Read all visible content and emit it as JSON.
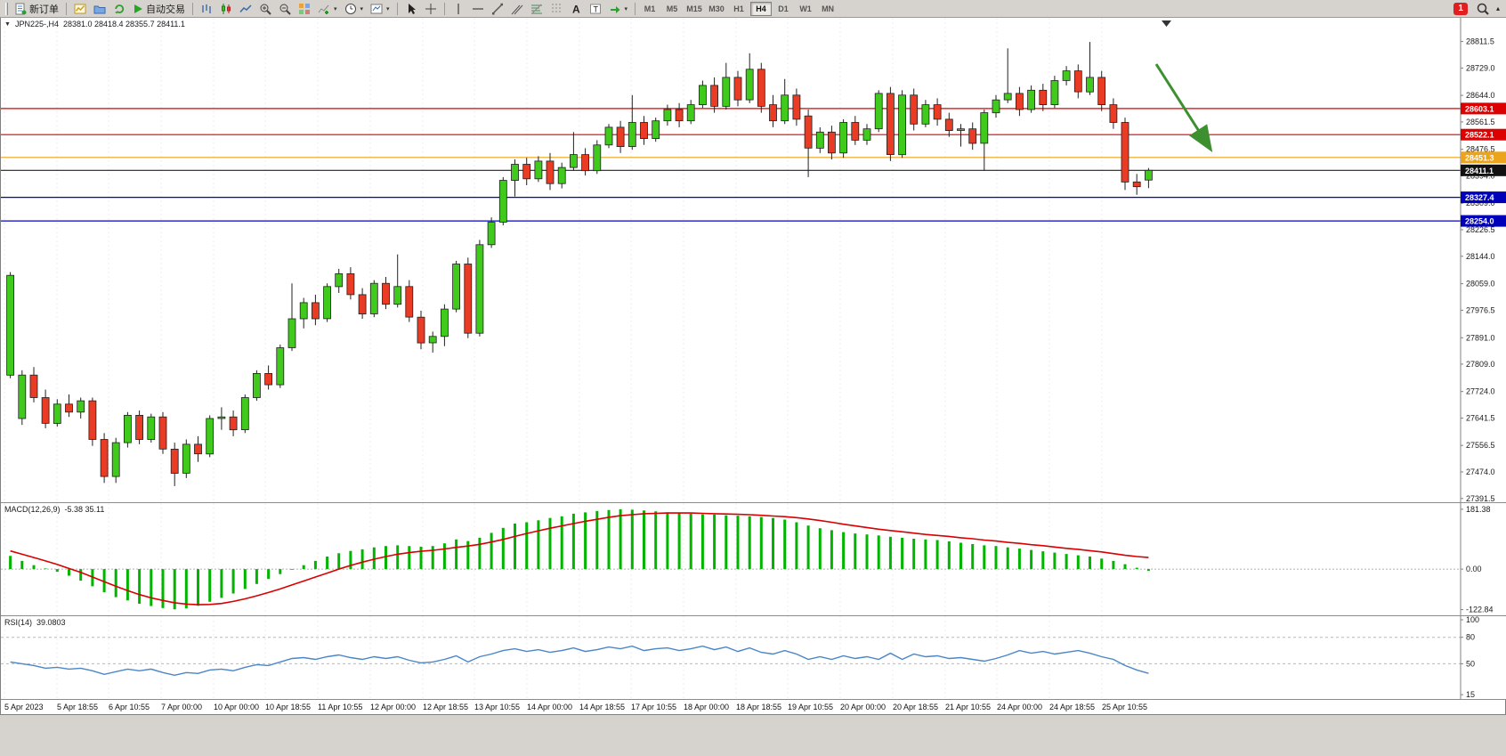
{
  "toolbar": {
    "new_order": "新订单",
    "auto_trading": "自动交易",
    "timeframes": [
      "M1",
      "M5",
      "M15",
      "M30",
      "H1",
      "H4",
      "D1",
      "W1",
      "MN"
    ],
    "active_timeframe": "H4",
    "notification_count": "1",
    "icon_names": [
      "new-order-doc",
      "new-chart",
      "profiles",
      "refresh",
      "auto-trading-play",
      "bar-chart",
      "candlestick-chart",
      "line-chart",
      "zoom-in",
      "zoom-out",
      "tile-windows",
      "indicators-add",
      "periods-clock",
      "templates",
      "cursor",
      "crosshair",
      "vertical-line",
      "horizontal-line",
      "trendline",
      "equidistant-channel",
      "fibonacci",
      "cycle-lines",
      "text",
      "text-label",
      "arrows",
      "search",
      "toolbar-overflow"
    ]
  },
  "chart_data": {
    "type": "candlestick",
    "symbol_title": "JPN225-,H4",
    "ohlc_display": "28381.0 28418.4 28355.7 28411.1",
    "up_color": "#3fca1c",
    "down_color": "#ea3b24",
    "wick_color": "#222222",
    "price_range": [
      27380,
      28885
    ],
    "price_ticks": [
      28811.5,
      28729.0,
      28644.0,
      28561.5,
      28476.5,
      28394.0,
      28309.0,
      28226.5,
      28144.0,
      28059.0,
      27976.5,
      27891.0,
      27809.0,
      27724.0,
      27641.5,
      27556.5,
      27474.0,
      27391.5
    ],
    "levels": [
      {
        "price": 28603.1,
        "color": "#dd0000",
        "label": "28603.1",
        "tag_bg": "#dd0000"
      },
      {
        "price": 28522.1,
        "color": "#dd0000",
        "label": "28522.1",
        "tag_bg": "#dd0000"
      },
      {
        "price": 28451.3,
        "color": "#eca41c",
        "label": "28451.3",
        "tag_bg": "#eca41c"
      },
      {
        "price": 28411.1,
        "color": "#222222",
        "label": "28411.1",
        "tag_bg": "#111111"
      },
      {
        "price": 28327.4,
        "color": "#0000cc",
        "label": "28327.4",
        "tag_bg": "#0000bb"
      },
      {
        "price": 28254.0,
        "color": "#0000cc",
        "label": "28254.0",
        "tag_bg": "#0000bb"
      }
    ],
    "annotation_arrow": {
      "color": "#3d8f2f"
    },
    "time_labels": [
      "5 Apr 2023",
      "5 Apr 18:55",
      "6 Apr 10:55",
      "7 Apr 00:00",
      "10 Apr 00:00",
      "10 Apr 18:55",
      "11 Apr 10:55",
      "12 Apr 00:00",
      "12 Apr 18:55",
      "13 Apr 10:55",
      "14 Apr 00:00",
      "14 Apr 18:55",
      "17 Apr 10:55",
      "18 Apr 00:00",
      "18 Apr 18:55",
      "19 Apr 10:55",
      "20 Apr 00:00",
      "20 Apr 18:55",
      "21 Apr 10:55",
      "24 Apr 00:00",
      "24 Apr 18:55",
      "25 Apr 10:55"
    ],
    "candles": [
      [
        27775,
        28095,
        27765,
        28085
      ],
      [
        27640,
        27790,
        27620,
        27775
      ],
      [
        27775,
        27800,
        27690,
        27705
      ],
      [
        27705,
        27730,
        27610,
        27625
      ],
      [
        27625,
        27700,
        27615,
        27685
      ],
      [
        27685,
        27715,
        27645,
        27660
      ],
      [
        27660,
        27705,
        27640,
        27695
      ],
      [
        27695,
        27705,
        27555,
        27575
      ],
      [
        27575,
        27595,
        27440,
        27460
      ],
      [
        27460,
        27580,
        27440,
        27565
      ],
      [
        27565,
        27660,
        27550,
        27650
      ],
      [
        27650,
        27665,
        27560,
        27575
      ],
      [
        27575,
        27655,
        27565,
        27645
      ],
      [
        27645,
        27660,
        27530,
        27545
      ],
      [
        27545,
        27565,
        27430,
        27470
      ],
      [
        27470,
        27575,
        27455,
        27560
      ],
      [
        27560,
        27585,
        27505,
        27530
      ],
      [
        27530,
        27650,
        27520,
        27640
      ],
      [
        27640,
        27675,
        27605,
        27645
      ],
      [
        27645,
        27665,
        27585,
        27605
      ],
      [
        27605,
        27715,
        27595,
        27705
      ],
      [
        27705,
        27790,
        27695,
        27780
      ],
      [
        27780,
        27805,
        27730,
        27745
      ],
      [
        27745,
        27870,
        27735,
        27860
      ],
      [
        27860,
        28060,
        27850,
        27950
      ],
      [
        27950,
        28015,
        27920,
        28000
      ],
      [
        28000,
        28025,
        27930,
        27950
      ],
      [
        27950,
        28060,
        27940,
        28050
      ],
      [
        28050,
        28105,
        28030,
        28090
      ],
      [
        28090,
        28110,
        28010,
        28025
      ],
      [
        28025,
        28045,
        27950,
        27965
      ],
      [
        27965,
        28070,
        27955,
        28060
      ],
      [
        28060,
        28080,
        27980,
        27995
      ],
      [
        27995,
        28150,
        27985,
        28050
      ],
      [
        28050,
        28070,
        27940,
        27955
      ],
      [
        27955,
        27975,
        27855,
        27875
      ],
      [
        27875,
        27910,
        27845,
        27895
      ],
      [
        27895,
        27995,
        27865,
        27980
      ],
      [
        27980,
        28130,
        27970,
        28120
      ],
      [
        28120,
        28140,
        27890,
        27905
      ],
      [
        27905,
        28195,
        27895,
        28180
      ],
      [
        28180,
        28265,
        28170,
        28250
      ],
      [
        28250,
        28390,
        28240,
        28380
      ],
      [
        28380,
        28445,
        28330,
        28430
      ],
      [
        28430,
        28450,
        28365,
        28385
      ],
      [
        28385,
        28455,
        28375,
        28440
      ],
      [
        28440,
        28465,
        28350,
        28370
      ],
      [
        28370,
        28435,
        28355,
        28420
      ],
      [
        28420,
        28530,
        28410,
        28460
      ],
      [
        28460,
        28480,
        28395,
        28410
      ],
      [
        28410,
        28505,
        28400,
        28490
      ],
      [
        28490,
        28555,
        28480,
        28545
      ],
      [
        28545,
        28565,
        28465,
        28485
      ],
      [
        28485,
        28645,
        28475,
        28560
      ],
      [
        28560,
        28580,
        28490,
        28510
      ],
      [
        28510,
        28575,
        28500,
        28565
      ],
      [
        28565,
        28615,
        28550,
        28600
      ],
      [
        28600,
        28620,
        28545,
        28565
      ],
      [
        28565,
        28630,
        28555,
        28615
      ],
      [
        28615,
        28690,
        28605,
        28675
      ],
      [
        28675,
        28700,
        28590,
        28610
      ],
      [
        28610,
        28745,
        28600,
        28700
      ],
      [
        28700,
        28720,
        28610,
        28630
      ],
      [
        28630,
        28775,
        28620,
        28725
      ],
      [
        28725,
        28745,
        28590,
        28610
      ],
      [
        28615,
        28645,
        28545,
        28565
      ],
      [
        28565,
        28695,
        28555,
        28645
      ],
      [
        28645,
        28665,
        28550,
        28570
      ],
      [
        28580,
        28600,
        28390,
        28480
      ],
      [
        28480,
        28545,
        28465,
        28530
      ],
      [
        28530,
        28550,
        28445,
        28465
      ],
      [
        28465,
        28570,
        28450,
        28560
      ],
      [
        28560,
        28580,
        28490,
        28505
      ],
      [
        28505,
        28555,
        28490,
        28540
      ],
      [
        28540,
        28660,
        28530,
        28650
      ],
      [
        28650,
        28670,
        28440,
        28460
      ],
      [
        28460,
        28660,
        28450,
        28645
      ],
      [
        28645,
        28665,
        28535,
        28555
      ],
      [
        28555,
        28630,
        28545,
        28615
      ],
      [
        28615,
        28635,
        28550,
        28570
      ],
      [
        28570,
        28590,
        28515,
        28535
      ],
      [
        28535,
        28555,
        28485,
        28540
      ],
      [
        28540,
        28560,
        28475,
        28495
      ],
      [
        28495,
        28600,
        28410,
        28590
      ],
      [
        28590,
        28645,
        28575,
        28630
      ],
      [
        28630,
        28790,
        28620,
        28650
      ],
      [
        28650,
        28670,
        28580,
        28600
      ],
      [
        28600,
        28675,
        28590,
        28660
      ],
      [
        28660,
        28680,
        28595,
        28615
      ],
      [
        28615,
        28705,
        28605,
        28690
      ],
      [
        28690,
        28735,
        28675,
        28720
      ],
      [
        28720,
        28740,
        28635,
        28655
      ],
      [
        28655,
        28810,
        28645,
        28700
      ],
      [
        28700,
        28720,
        28595,
        28615
      ],
      [
        28615,
        28635,
        28540,
        28560
      ],
      [
        28560,
        28575,
        28350,
        28375
      ],
      [
        28375,
        28400,
        28335,
        28360
      ],
      [
        28381,
        28418.4,
        28355.7,
        28411.1
      ]
    ],
    "macd": {
      "label": "MACD(12,26,9)",
      "values_text": "-5.38 35.11",
      "scale_ticks": [
        181.38,
        0.0,
        -122.84
      ],
      "range": [
        -140,
        200
      ],
      "hist_color": "#00b400",
      "signal_color": "#d80000",
      "histogram": [
        40,
        25,
        12,
        2,
        -8,
        -20,
        -35,
        -52,
        -70,
        -85,
        -95,
        -105,
        -112,
        -118,
        -122,
        -119,
        -111,
        -99,
        -87,
        -74,
        -60,
        -45,
        -30,
        -15,
        -2,
        12,
        25,
        38,
        48,
        55,
        60,
        66,
        70,
        72,
        70,
        68,
        70,
        78,
        90,
        85,
        95,
        110,
        125,
        138,
        142,
        148,
        155,
        160,
        168,
        172,
        176,
        179,
        181,
        180,
        178,
        175,
        172,
        170,
        168,
        166,
        165,
        163,
        162,
        160,
        158,
        155,
        150,
        142,
        132,
        124,
        118,
        112,
        108,
        105,
        102,
        98,
        95,
        92,
        90,
        88,
        84,
        80,
        76,
        72,
        70,
        66,
        62,
        58,
        54,
        50,
        46,
        42,
        38,
        32,
        25,
        15,
        4,
        -5.38
      ],
      "signal": [
        55,
        45,
        35,
        25,
        14,
        2,
        -10,
        -24,
        -38,
        -52,
        -65,
        -77,
        -87,
        -95,
        -102,
        -106,
        -108,
        -107,
        -104,
        -98,
        -90,
        -81,
        -71,
        -60,
        -48,
        -36,
        -24,
        -12,
        0,
        11,
        21,
        30,
        38,
        45,
        50,
        54,
        57,
        61,
        66,
        70,
        75,
        82,
        90,
        99,
        108,
        116,
        124,
        131,
        138,
        145,
        151,
        157,
        162,
        165,
        168,
        169,
        170,
        170,
        170,
        169,
        168,
        167,
        166,
        165,
        163,
        161,
        159,
        156,
        152,
        147,
        142,
        136,
        131,
        126,
        121,
        117,
        113,
        109,
        105,
        102,
        99,
        95,
        92,
        88,
        85,
        81,
        78,
        74,
        71,
        67,
        63,
        60,
        56,
        52,
        47,
        42,
        38,
        35.11
      ]
    },
    "rsi": {
      "label": "RSI(14)",
      "value_text": "39.0803",
      "scale_ticks": [
        100,
        80,
        50,
        15
      ],
      "range": [
        10,
        104
      ],
      "line_color": "#4a86c8",
      "level_lines": [
        80,
        50
      ],
      "values": [
        52,
        50,
        48,
        45,
        46,
        44,
        45,
        42,
        38,
        41,
        44,
        42,
        44,
        40,
        37,
        40,
        39,
        43,
        44,
        42,
        46,
        49,
        48,
        52,
        56,
        57,
        55,
        58,
        60,
        57,
        55,
        58,
        56,
        58,
        54,
        51,
        52,
        55,
        59,
        52,
        58,
        61,
        65,
        67,
        64,
        66,
        63,
        65,
        68,
        64,
        66,
        69,
        67,
        70,
        65,
        67,
        68,
        65,
        67,
        70,
        66,
        69,
        64,
        68,
        63,
        61,
        65,
        61,
        55,
        58,
        55,
        59,
        56,
        58,
        55,
        62,
        55,
        61,
        58,
        59,
        56,
        57,
        55,
        53,
        56,
        60,
        65,
        62,
        64,
        61,
        63,
        65,
        62,
        58,
        55,
        48,
        43,
        39.08
      ]
    }
  }
}
